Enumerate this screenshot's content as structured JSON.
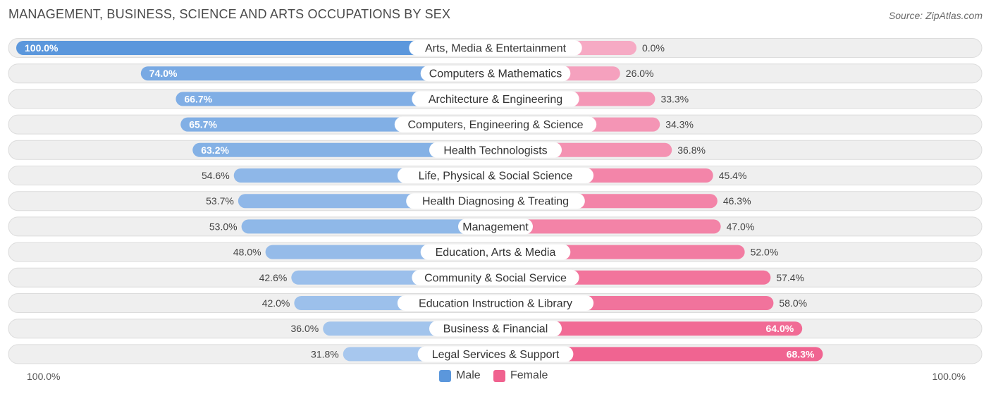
{
  "header": {
    "title": "MANAGEMENT, BUSINESS, SCIENCE AND ARTS OCCUPATIONS BY SEX",
    "source": "Source: ZipAtlas.com"
  },
  "colors": {
    "male_strong": "#5b97dc",
    "male_light": "#a9c8ee",
    "female_strong": "#f0628f",
    "female_light": "#f6aac4",
    "row_bg": "#efefef",
    "row_border": "#dcdcdc"
  },
  "legend": {
    "male_label": "Male",
    "female_label": "Female"
  },
  "axis": {
    "left_label": "100.0%",
    "right_label": "100.0%"
  },
  "chart_data": {
    "type": "bar",
    "orientation": "horizontal-diverging",
    "title": "MANAGEMENT, BUSINESS, SCIENCE AND ARTS OCCUPATIONS BY SEX",
    "xlim": [
      -100,
      100
    ],
    "categories": [
      "Arts, Media & Entertainment",
      "Computers & Mathematics",
      "Architecture & Engineering",
      "Computers, Engineering & Science",
      "Health Technologists",
      "Life, Physical & Social Science",
      "Health Diagnosing & Treating",
      "Management",
      "Education, Arts & Media",
      "Community & Social Service",
      "Education Instruction & Library",
      "Business & Financial",
      "Legal Services & Support"
    ],
    "series": [
      {
        "name": "Male",
        "values": [
          100.0,
          74.0,
          66.7,
          65.7,
          63.2,
          54.6,
          53.7,
          53.0,
          48.0,
          42.6,
          42.0,
          36.0,
          31.8
        ],
        "labels": [
          "100.0%",
          "74.0%",
          "66.7%",
          "65.7%",
          "63.2%",
          "54.6%",
          "53.7%",
          "53.0%",
          "48.0%",
          "42.6%",
          "42.0%",
          "36.0%",
          "31.8%"
        ]
      },
      {
        "name": "Female",
        "values": [
          0.0,
          26.0,
          33.3,
          34.3,
          36.8,
          45.4,
          46.3,
          47.0,
          52.0,
          57.4,
          58.0,
          64.0,
          68.3
        ],
        "labels": [
          "0.0%",
          "26.0%",
          "33.3%",
          "34.3%",
          "36.8%",
          "45.4%",
          "46.3%",
          "47.0%",
          "52.0%",
          "57.4%",
          "58.0%",
          "64.0%",
          "68.3%"
        ]
      }
    ],
    "legend_position": "bottom-center"
  }
}
